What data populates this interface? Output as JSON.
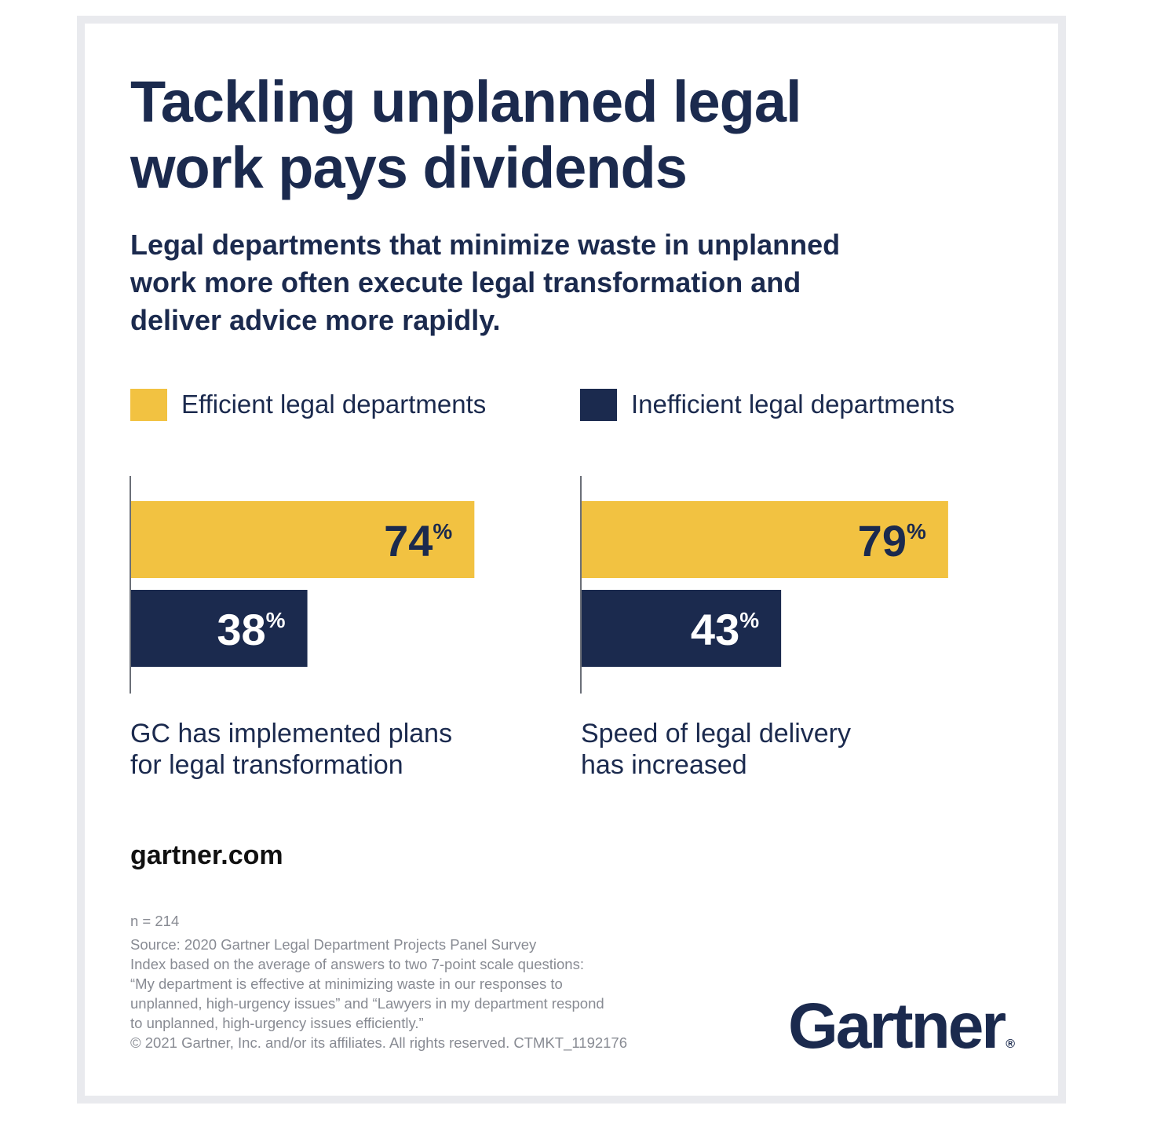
{
  "title_line1": "Tackling unplanned legal",
  "title_line2": "work pays dividends",
  "subtitle_lines": [
    "Legal departments that minimize waste in unplanned",
    "work more often execute legal transformation and",
    "deliver advice more rapidly."
  ],
  "legend": [
    {
      "label": "Efficient legal departments",
      "color": "#f2c241"
    },
    {
      "label": "Inefficient legal departments",
      "color": "#1b2a4e"
    }
  ],
  "chart_data": [
    {
      "type": "bar",
      "orientation": "horizontal",
      "category_lines": [
        "GC has implemented plans",
        "for legal transformation"
      ],
      "series": [
        {
          "name": "Efficient legal departments",
          "value": 74,
          "label": "74",
          "color": "#f2c241"
        },
        {
          "name": "Inefficient legal departments",
          "value": 38,
          "label": "38",
          "color": "#1b2a4e"
        }
      ],
      "unit": "%",
      "xlim": [
        0,
        100
      ]
    },
    {
      "type": "bar",
      "orientation": "horizontal",
      "category_lines": [
        "Speed of legal delivery",
        "has increased"
      ],
      "series": [
        {
          "name": "Efficient legal departments",
          "value": 79,
          "label": "79",
          "color": "#f2c241"
        },
        {
          "name": "Inefficient legal departments",
          "value": 43,
          "label": "43",
          "color": "#1b2a4e"
        }
      ],
      "unit": "%",
      "xlim": [
        0,
        100
      ]
    }
  ],
  "website": "gartner.com",
  "footnotes": [
    "n = 214",
    "Source: 2020 Gartner Legal Department Projects Panel Survey",
    "Index based on the average of answers to two 7-point scale questions:",
    "“My department is effective at minimizing waste in our responses to",
    "unplanned, high-urgency issues” and “Lawyers in my department respond",
    "to unplanned, high-urgency issues efficiently.”",
    "© 2021 Gartner, Inc. and/or its affiliates. All rights reserved. CTMKT_1192176"
  ],
  "logo_text": "Gartner",
  "logo_mark": "®"
}
